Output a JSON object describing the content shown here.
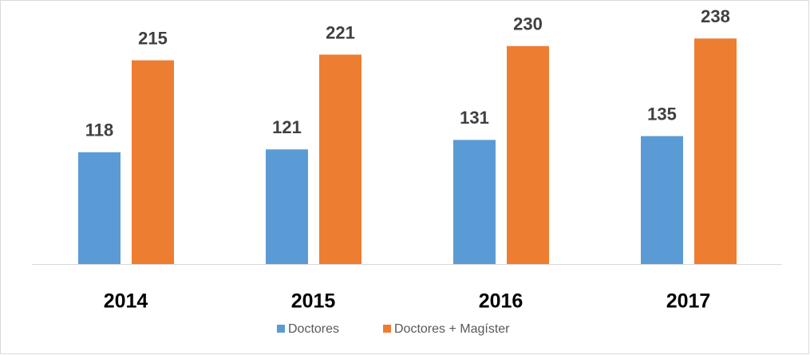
{
  "chart_data": {
    "type": "bar",
    "categories": [
      "2014",
      "2015",
      "2016",
      "2017"
    ],
    "series": [
      {
        "name": "Doctores",
        "color": "#5b9bd5",
        "values": [
          118,
          121,
          131,
          135
        ]
      },
      {
        "name": "Doctores + Magíster",
        "color": "#ed7d31",
        "values": [
          215,
          221,
          230,
          238
        ]
      }
    ],
    "ylim": [
      0,
      250
    ]
  }
}
